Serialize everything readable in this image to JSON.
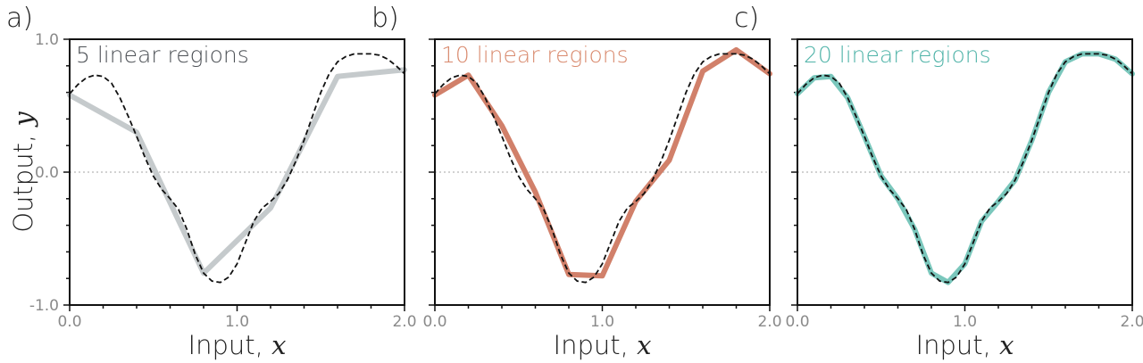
{
  "y_axis_label_text": "Output, ",
  "y_axis_label_var": "y",
  "x_axis_label_text": "Input, ",
  "x_axis_label_var": "x",
  "target_line_color": "#111111",
  "chart_data": [
    {
      "type": "line",
      "panel_label": "a)",
      "title": "5 linear regions",
      "title_color": "#4e5257",
      "approx_color": "#c5cacc",
      "xlim": [
        0,
        2
      ],
      "ylim": [
        -1,
        1
      ],
      "x_ticks": [
        "0.0",
        "1.0",
        "2.0"
      ],
      "y_ticks": [
        "1.0",
        "0.0",
        "-1.0"
      ],
      "show_y_tick_labels": true,
      "show_y_axis_label": true,
      "series": [
        {
          "style": "solid",
          "x": [
            0.0,
            0.4,
            0.8,
            1.2,
            1.6,
            2.0
          ],
          "y": [
            0.58,
            0.3,
            -0.76,
            -0.27,
            0.72,
            0.77
          ]
        },
        {
          "style": "dashed",
          "x": [
            0.0,
            0.05,
            0.1,
            0.15,
            0.2,
            0.25,
            0.3,
            0.35,
            0.4,
            0.45,
            0.5,
            0.55,
            0.6,
            0.65,
            0.7,
            0.75,
            0.8,
            0.85,
            0.9,
            0.95,
            1.0,
            1.05,
            1.1,
            1.15,
            1.2,
            1.25,
            1.3,
            1.35,
            1.4,
            1.45,
            1.5,
            1.55,
            1.6,
            1.65,
            1.7,
            1.75,
            1.8,
            1.85,
            1.9,
            1.95,
            2.0
          ],
          "y": [
            0.59,
            0.66,
            0.71,
            0.73,
            0.72,
            0.67,
            0.56,
            0.42,
            0.27,
            0.11,
            -0.03,
            -0.13,
            -0.2,
            -0.28,
            -0.43,
            -0.62,
            -0.76,
            -0.82,
            -0.83,
            -0.79,
            -0.69,
            -0.53,
            -0.37,
            -0.27,
            -0.22,
            -0.16,
            -0.06,
            0.08,
            0.24,
            0.42,
            0.6,
            0.74,
            0.83,
            0.87,
            0.89,
            0.89,
            0.89,
            0.88,
            0.85,
            0.8,
            0.74
          ]
        }
      ]
    },
    {
      "type": "line",
      "panel_label": "b)",
      "title": "10 linear regions",
      "title_color": "#d98a6e",
      "approx_color": "#d1806a",
      "xlim": [
        0,
        2
      ],
      "ylim": [
        -1,
        1
      ],
      "x_ticks": [
        "0.0",
        "1.0",
        "2.0"
      ],
      "y_ticks": [
        "1.0",
        "0.0",
        "-1.0"
      ],
      "show_y_tick_labels": false,
      "show_y_axis_label": false,
      "series": [
        {
          "style": "solid",
          "x": [
            0.0,
            0.2,
            0.4,
            0.6,
            0.8,
            1.0,
            1.2,
            1.4,
            1.6,
            1.8,
            2.0
          ],
          "y": [
            0.58,
            0.73,
            0.35,
            -0.15,
            -0.77,
            -0.78,
            -0.22,
            0.09,
            0.76,
            0.92,
            0.74
          ]
        },
        {
          "style": "dashed",
          "x": [
            0.0,
            0.05,
            0.1,
            0.15,
            0.2,
            0.25,
            0.3,
            0.35,
            0.4,
            0.45,
            0.5,
            0.55,
            0.6,
            0.65,
            0.7,
            0.75,
            0.8,
            0.85,
            0.9,
            0.95,
            1.0,
            1.05,
            1.1,
            1.15,
            1.2,
            1.25,
            1.3,
            1.35,
            1.4,
            1.45,
            1.5,
            1.55,
            1.6,
            1.65,
            1.7,
            1.75,
            1.8,
            1.85,
            1.9,
            1.95,
            2.0
          ],
          "y": [
            0.59,
            0.66,
            0.71,
            0.73,
            0.72,
            0.67,
            0.56,
            0.42,
            0.27,
            0.11,
            -0.03,
            -0.13,
            -0.2,
            -0.28,
            -0.43,
            -0.62,
            -0.76,
            -0.82,
            -0.83,
            -0.79,
            -0.69,
            -0.53,
            -0.37,
            -0.27,
            -0.22,
            -0.16,
            -0.06,
            0.08,
            0.24,
            0.42,
            0.6,
            0.74,
            0.83,
            0.87,
            0.89,
            0.89,
            0.89,
            0.88,
            0.85,
            0.8,
            0.74
          ]
        }
      ]
    },
    {
      "type": "line",
      "panel_label": "c)",
      "title": "20 linear regions",
      "title_color": "#4fb3a8",
      "approx_color": "#7ac7bc",
      "xlim": [
        0,
        2
      ],
      "ylim": [
        -1,
        1
      ],
      "x_ticks": [
        "0.0",
        "1.0",
        "2.0"
      ],
      "y_ticks": [
        "1.0",
        "0.0",
        "-1.0"
      ],
      "show_y_tick_labels": false,
      "show_y_axis_label": false,
      "series": [
        {
          "style": "solid",
          "x": [
            0.0,
            0.1,
            0.2,
            0.3,
            0.4,
            0.5,
            0.6,
            0.7,
            0.8,
            0.9,
            1.0,
            1.1,
            1.2,
            1.3,
            1.4,
            1.5,
            1.6,
            1.7,
            1.8,
            1.9,
            2.0
          ],
          "y": [
            0.59,
            0.71,
            0.72,
            0.56,
            0.27,
            -0.03,
            -0.2,
            -0.43,
            -0.76,
            -0.83,
            -0.69,
            -0.37,
            -0.22,
            -0.06,
            0.24,
            0.6,
            0.83,
            0.89,
            0.89,
            0.85,
            0.74
          ]
        },
        {
          "style": "dashed",
          "x": [
            0.0,
            0.05,
            0.1,
            0.15,
            0.2,
            0.25,
            0.3,
            0.35,
            0.4,
            0.45,
            0.5,
            0.55,
            0.6,
            0.65,
            0.7,
            0.75,
            0.8,
            0.85,
            0.9,
            0.95,
            1.0,
            1.05,
            1.1,
            1.15,
            1.2,
            1.25,
            1.3,
            1.35,
            1.4,
            1.45,
            1.5,
            1.55,
            1.6,
            1.65,
            1.7,
            1.75,
            1.8,
            1.85,
            1.9,
            1.95,
            2.0
          ],
          "y": [
            0.59,
            0.66,
            0.71,
            0.73,
            0.72,
            0.67,
            0.56,
            0.42,
            0.27,
            0.11,
            -0.03,
            -0.13,
            -0.2,
            -0.28,
            -0.43,
            -0.62,
            -0.76,
            -0.82,
            -0.83,
            -0.79,
            -0.69,
            -0.53,
            -0.37,
            -0.27,
            -0.22,
            -0.16,
            -0.06,
            0.08,
            0.24,
            0.42,
            0.6,
            0.74,
            0.83,
            0.87,
            0.89,
            0.89,
            0.89,
            0.88,
            0.85,
            0.8,
            0.74
          ]
        }
      ]
    }
  ]
}
